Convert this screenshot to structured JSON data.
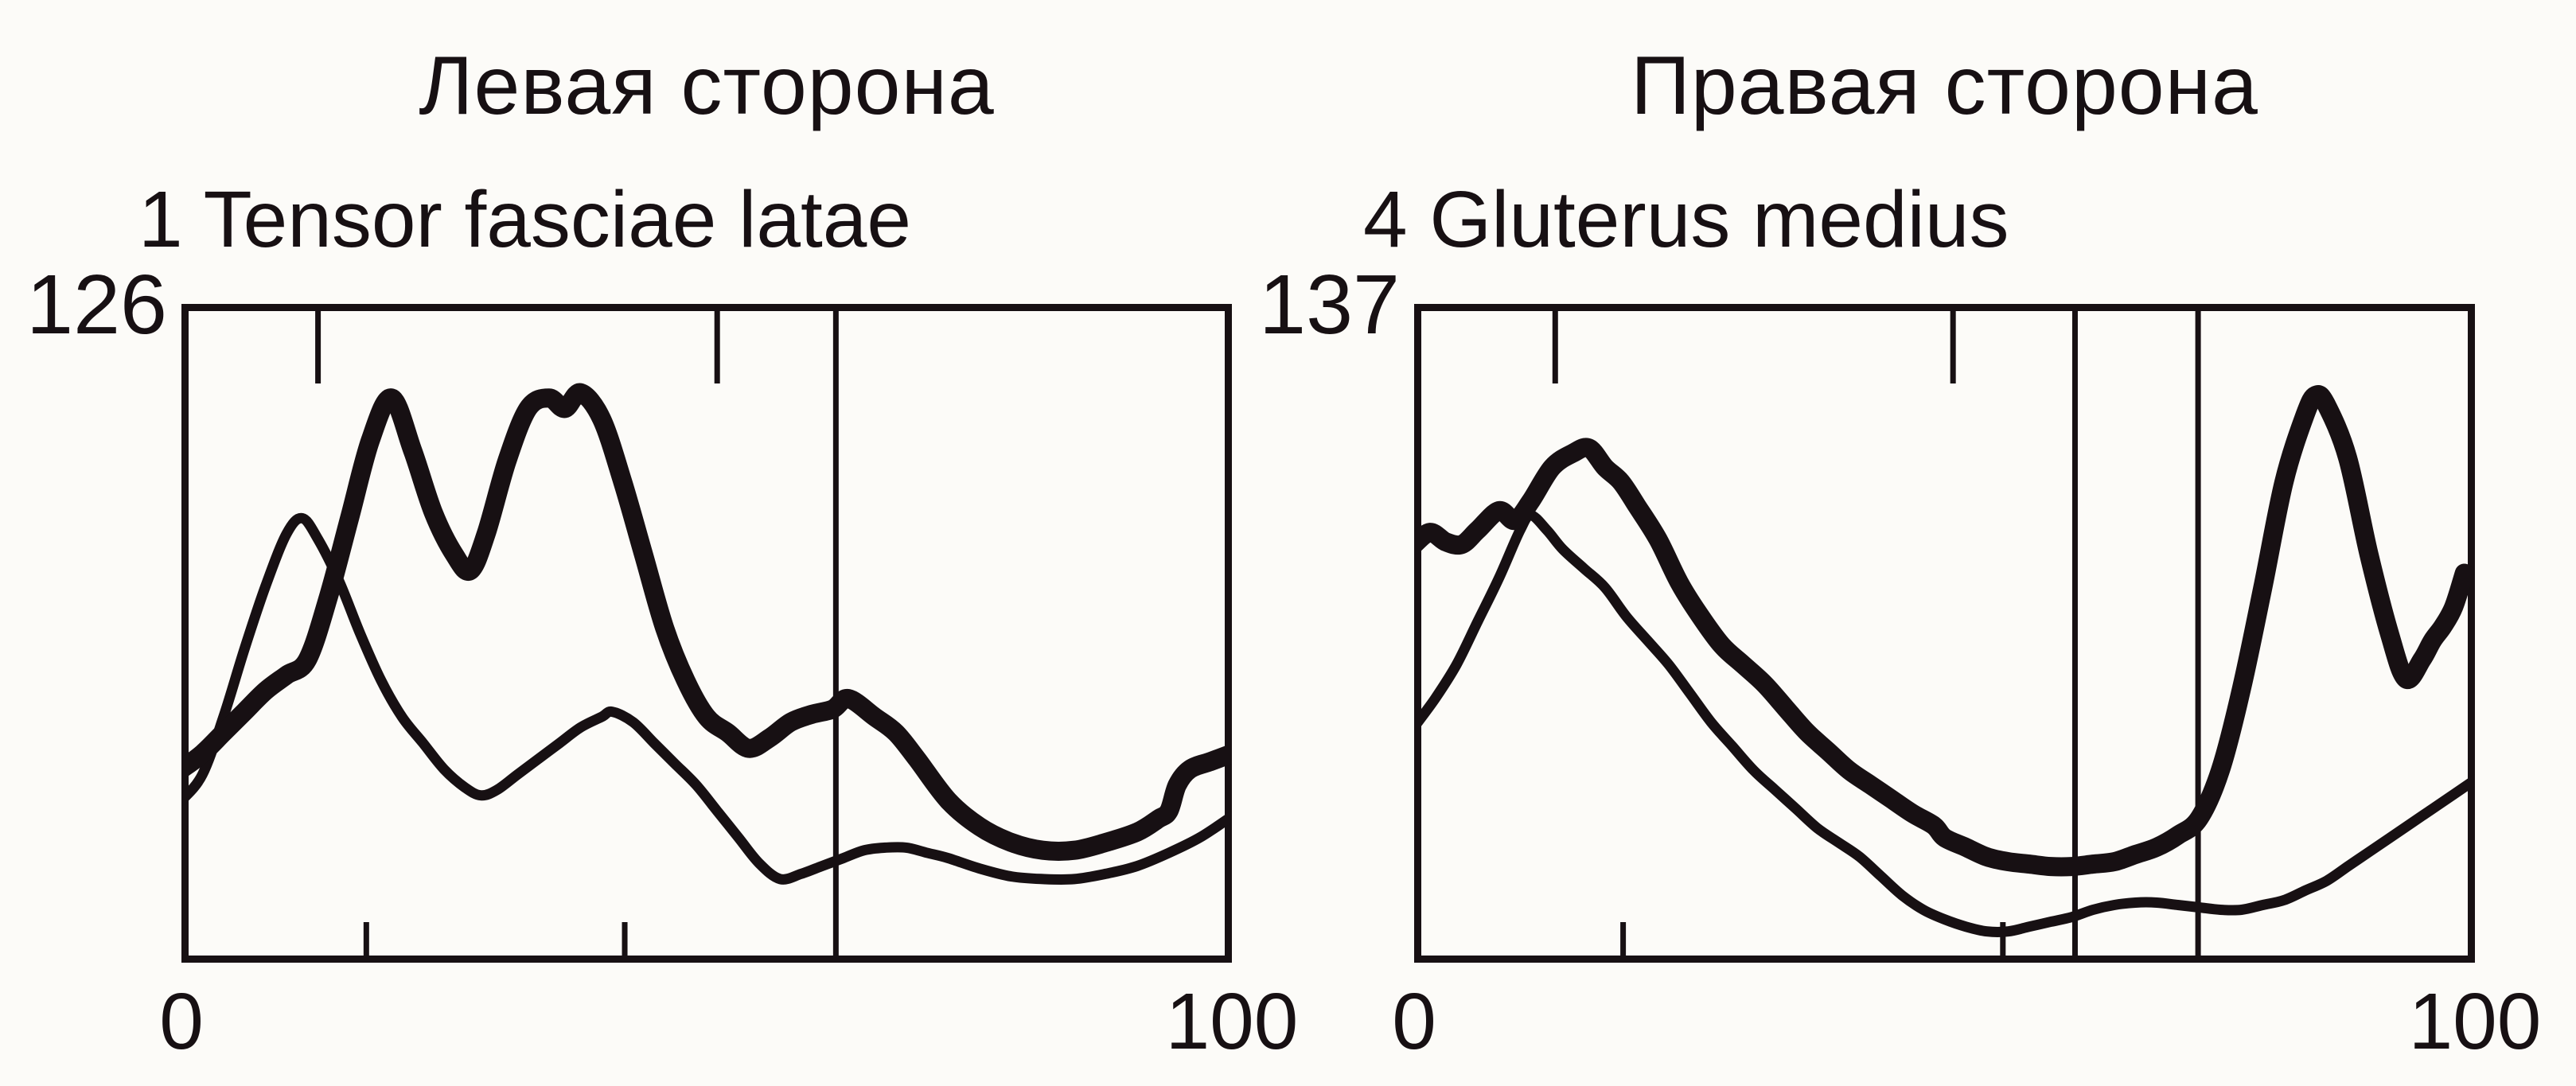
{
  "page": {
    "background_color": "#fcfbf8",
    "ink_color": "#171013",
    "description_labels": {
      "left_title": "Левая сторона",
      "right_title": "Правая сторона"
    }
  },
  "chart_data": [
    {
      "type": "line",
      "side": "left",
      "title": "Левая сторона",
      "subtitle": "1 Tensor fasciae latae",
      "muscle_number": "1",
      "muscle_name": "Tensor fasciae latae",
      "x_axis": {
        "start_label": "0",
        "end_label": "100",
        "min": 0,
        "max": 100
      },
      "y_axis": {
        "max_label": "126",
        "min": 0,
        "max": 126
      },
      "grid": false,
      "legend": "none",
      "event_markers": {
        "top_ticks_pct": [
          13.0,
          51.0
        ],
        "bottom_ticks_pct": [
          17.6,
          42.2
        ],
        "vertical_lines_pct": [
          62.3
        ]
      },
      "series": [
        {
          "name": "thick-trace",
          "weight": "thick",
          "points": [
            [
              0,
              37
            ],
            [
              2,
              40
            ],
            [
              4,
              44
            ],
            [
              6,
              48
            ],
            [
              8,
              52
            ],
            [
              10,
              55
            ],
            [
              12,
              58
            ],
            [
              14,
              70
            ],
            [
              16,
              85
            ],
            [
              18,
              100
            ],
            [
              20,
              108
            ],
            [
              22,
              98
            ],
            [
              24,
              86
            ],
            [
              26,
              78
            ],
            [
              27.5,
              75
            ],
            [
              29,
              82
            ],
            [
              31,
              96
            ],
            [
              33,
              106
            ],
            [
              35,
              108
            ],
            [
              36.5,
              106
            ],
            [
              38,
              109
            ],
            [
              40,
              104
            ],
            [
              42,
              92
            ],
            [
              44,
              78
            ],
            [
              46,
              64
            ],
            [
              48,
              54
            ],
            [
              50,
              47
            ],
            [
              52,
              44
            ],
            [
              54,
              41
            ],
            [
              56,
              43
            ],
            [
              58,
              46
            ],
            [
              60,
              47.5
            ],
            [
              62,
              48.5
            ],
            [
              63.5,
              50.5
            ],
            [
              66,
              47
            ],
            [
              68,
              44
            ],
            [
              70,
              39
            ],
            [
              73,
              31
            ],
            [
              76,
              26
            ],
            [
              79,
              23
            ],
            [
              82,
              21.5
            ],
            [
              85,
              21.5
            ],
            [
              88,
              23
            ],
            [
              91,
              25
            ],
            [
              93,
              27.5
            ],
            [
              94,
              29
            ],
            [
              94.8,
              34
            ],
            [
              96,
              37
            ],
            [
              98,
              38.5
            ],
            [
              100,
              40
            ]
          ]
        },
        {
          "name": "thin-trace",
          "weight": "thin",
          "points": [
            [
              0,
              31
            ],
            [
              2,
              36
            ],
            [
              4,
              47
            ],
            [
              6,
              60
            ],
            [
              8,
              72
            ],
            [
              10,
              82
            ],
            [
              11.5,
              85
            ],
            [
              13,
              81
            ],
            [
              15,
              73
            ],
            [
              17,
              63
            ],
            [
              19,
              54
            ],
            [
              21,
              47
            ],
            [
              23,
              42
            ],
            [
              25,
              37
            ],
            [
              27,
              33.5
            ],
            [
              28.5,
              32
            ],
            [
              30,
              33
            ],
            [
              32,
              36
            ],
            [
              34,
              39
            ],
            [
              36,
              42
            ],
            [
              38,
              45
            ],
            [
              40,
              47
            ],
            [
              41,
              48
            ],
            [
              43,
              46
            ],
            [
              45,
              42
            ],
            [
              47,
              38
            ],
            [
              49,
              34
            ],
            [
              51,
              29
            ],
            [
              53,
              24
            ],
            [
              55,
              19
            ],
            [
              57,
              16
            ],
            [
              59,
              17
            ],
            [
              61,
              18.5
            ],
            [
              63,
              20
            ],
            [
              65,
              21.5
            ],
            [
              67,
              22
            ],
            [
              69,
              22
            ],
            [
              71,
              21
            ],
            [
              73,
              20
            ],
            [
              76,
              18
            ],
            [
              79,
              16.5
            ],
            [
              82,
              16
            ],
            [
              85,
              16
            ],
            [
              88,
              17
            ],
            [
              91,
              18.5
            ],
            [
              94,
              21
            ],
            [
              97,
              24
            ],
            [
              100,
              28
            ]
          ]
        }
      ]
    },
    {
      "type": "line",
      "side": "right",
      "title": "Правая сторона",
      "subtitle": "4 Gluterus medius",
      "muscle_number": "4",
      "muscle_name": "Gluterus medius",
      "x_axis": {
        "start_label": "0",
        "end_label": "100",
        "min": 0,
        "max": 100
      },
      "y_axis": {
        "max_label": "137",
        "min": 0,
        "max": 137
      },
      "grid": false,
      "legend": "none",
      "event_markers": {
        "top_ticks_pct": [
          13.3,
          50.8
        ],
        "bottom_ticks_pct": [
          19.7,
          55.5
        ],
        "vertical_lines_pct": [
          62.3,
          73.9
        ]
      },
      "series": [
        {
          "name": "thick-trace",
          "weight": "thick",
          "points": [
            [
              0,
              87
            ],
            [
              1.5,
              89.5
            ],
            [
              3,
              87.5
            ],
            [
              4.5,
              87
            ],
            [
              6,
              90
            ],
            [
              8,
              94
            ],
            [
              9.5,
              92
            ],
            [
              11,
              96
            ],
            [
              13,
              103
            ],
            [
              15,
              106
            ],
            [
              16.5,
              107
            ],
            [
              18,
              103
            ],
            [
              19.5,
              100
            ],
            [
              21,
              95
            ],
            [
              23,
              88
            ],
            [
              25,
              79
            ],
            [
              27,
              72
            ],
            [
              29,
              66
            ],
            [
              31,
              62
            ],
            [
              33,
              58
            ],
            [
              35,
              53
            ],
            [
              37,
              48
            ],
            [
              39,
              44
            ],
            [
              41,
              40
            ],
            [
              43,
              37
            ],
            [
              45,
              34
            ],
            [
              47,
              31
            ],
            [
              49,
              28.5
            ],
            [
              50,
              26
            ],
            [
              52,
              24
            ],
            [
              54,
              22
            ],
            [
              56,
              21
            ],
            [
              58,
              20.5
            ],
            [
              60,
              20
            ],
            [
              62,
              20
            ],
            [
              64,
              20.5
            ],
            [
              66,
              21
            ],
            [
              68,
              22.5
            ],
            [
              70,
              24
            ],
            [
              72,
              26.5
            ],
            [
              74,
              30
            ],
            [
              76,
              40
            ],
            [
              78,
              57
            ],
            [
              80,
              78
            ],
            [
              82,
              100
            ],
            [
              84,
              114
            ],
            [
              85,
              118
            ],
            [
              86,
              116
            ],
            [
              88,
              105
            ],
            [
              90,
              85
            ],
            [
              92,
              68
            ],
            [
              93.5,
              59
            ],
            [
              95,
              63
            ],
            [
              96,
              67
            ],
            [
              97,
              70
            ],
            [
              98,
              74
            ],
            [
              99,
              81
            ]
          ]
        },
        {
          "name": "thin-trace",
          "weight": "thin",
          "points": [
            [
              0,
              49
            ],
            [
              2,
              55
            ],
            [
              4,
              62
            ],
            [
              6,
              71
            ],
            [
              8,
              80
            ],
            [
              10,
              90
            ],
            [
              11,
              93
            ],
            [
              12.5,
              90
            ],
            [
              14,
              86
            ],
            [
              16,
              82
            ],
            [
              18,
              78
            ],
            [
              20,
              72
            ],
            [
              22,
              67
            ],
            [
              24,
              62
            ],
            [
              26,
              56
            ],
            [
              28,
              50
            ],
            [
              30,
              45
            ],
            [
              32,
              40
            ],
            [
              34,
              36
            ],
            [
              36,
              32
            ],
            [
              38,
              28
            ],
            [
              40,
              25
            ],
            [
              42,
              22
            ],
            [
              44,
              18
            ],
            [
              46,
              14
            ],
            [
              48,
              11
            ],
            [
              50,
              9
            ],
            [
              52,
              7.5
            ],
            [
              54,
              6.5
            ],
            [
              56,
              6.5
            ],
            [
              58,
              7.5
            ],
            [
              60,
              8.5
            ],
            [
              62,
              9.5
            ],
            [
              64,
              11
            ],
            [
              66,
              12
            ],
            [
              68,
              12.5
            ],
            [
              70,
              12.5
            ],
            [
              72,
              12
            ],
            [
              74,
              11.5
            ],
            [
              76,
              11
            ],
            [
              78,
              11
            ],
            [
              80,
              12
            ],
            [
              82,
              13
            ],
            [
              84,
              15
            ],
            [
              86,
              17
            ],
            [
              88,
              20
            ],
            [
              90,
              23
            ],
            [
              92,
              26
            ],
            [
              94,
              29
            ],
            [
              96,
              32
            ],
            [
              98,
              35
            ],
            [
              100,
              38
            ]
          ]
        }
      ]
    }
  ]
}
